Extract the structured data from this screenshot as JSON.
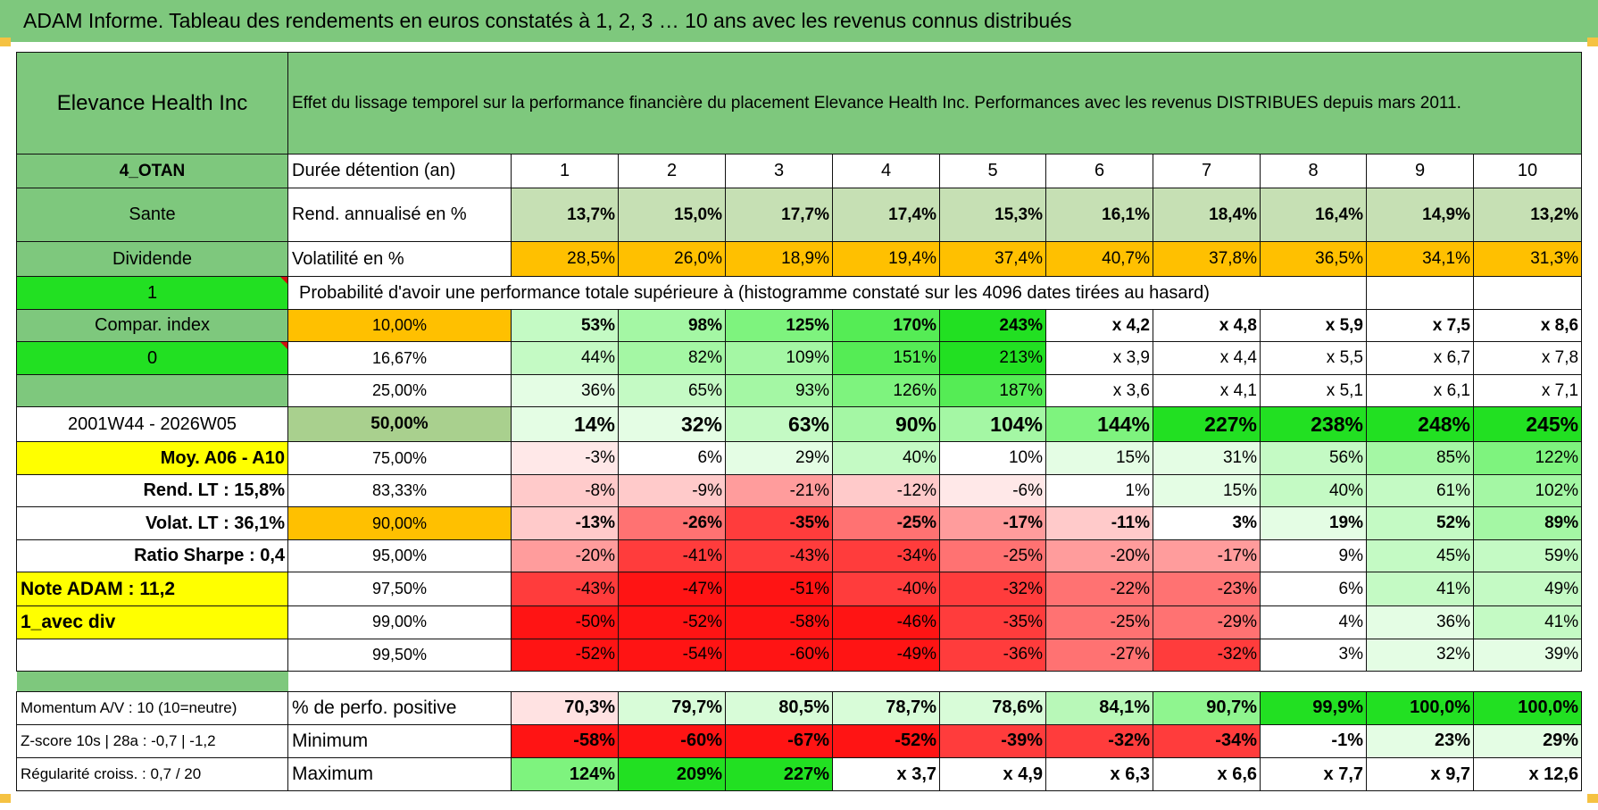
{
  "title": "ADAM Informe. Tableau des rendements en euros constatés à 1, 2, 3 … 10 ans avec les revenus connus distribués",
  "header": {
    "asset": "Elevance Health Inc",
    "description": "Effet du lissage temporel sur la performance financière du placement Elevance Health Inc. Performances avec les revenus DISTRIBUES depuis mars 2011."
  },
  "years": [
    "1",
    "2",
    "3",
    "4",
    "5",
    "6",
    "7",
    "8",
    "9",
    "10"
  ],
  "rows": {
    "duration": {
      "side": "4_OTAN",
      "label": "Durée détention (an)"
    },
    "return": {
      "side": "Sante",
      "label": "Rend. annualisé en %",
      "values": [
        "13,7%",
        "15,0%",
        "17,7%",
        "17,4%",
        "15,3%",
        "16,1%",
        "18,4%",
        "16,4%",
        "14,9%",
        "13,2%"
      ]
    },
    "volatility": {
      "side": "Dividende",
      "label": "Volatilité en %",
      "values": [
        "28,5%",
        "26,0%",
        "18,9%",
        "19,4%",
        "37,4%",
        "40,7%",
        "37,8%",
        "36,5%",
        "34,1%",
        "31,3%"
      ]
    },
    "prob_title": {
      "side": "1",
      "label": "Probabilité d'avoir une performance totale supérieure à (histogramme constaté sur les 4096 dates tirées au hasard)"
    }
  },
  "quantiles": [
    {
      "side": "Compar. index",
      "pct": "10,00%",
      "values": [
        "53%",
        "98%",
        "125%",
        "170%",
        "243%",
        "x 4,2",
        "x 4,8",
        "x 5,9",
        "x 7,5",
        "x 8,6"
      ]
    },
    {
      "side": "0",
      "pct": "16,67%",
      "values": [
        "44%",
        "82%",
        "109%",
        "151%",
        "213%",
        "x 3,9",
        "x 4,4",
        "x 5,5",
        "x 6,7",
        "x 7,8"
      ]
    },
    {
      "side": "",
      "pct": "25,00%",
      "values": [
        "36%",
        "65%",
        "93%",
        "126%",
        "187%",
        "x 3,6",
        "x 4,1",
        "x 5,1",
        "x 6,1",
        "x 7,1"
      ]
    },
    {
      "side": "2001W44 - 2026W05",
      "pct": "50,00%",
      "values": [
        "14%",
        "32%",
        "63%",
        "90%",
        "104%",
        "144%",
        "227%",
        "238%",
        "248%",
        "245%"
      ]
    },
    {
      "side": "Moy. A06 - A10",
      "pct": "75,00%",
      "values": [
        "-3%",
        "6%",
        "29%",
        "40%",
        "10%",
        "15%",
        "31%",
        "56%",
        "85%",
        "122%"
      ]
    },
    {
      "side": "Rend. LT :    15,8%",
      "pct": "83,33%",
      "values": [
        "-8%",
        "-9%",
        "-21%",
        "-12%",
        "-6%",
        "1%",
        "15%",
        "40%",
        "61%",
        "102%"
      ]
    },
    {
      "side": "Volat. LT :    36,1%",
      "pct": "90,00%",
      "values": [
        "-13%",
        "-26%",
        "-35%",
        "-25%",
        "-17%",
        "-11%",
        "3%",
        "19%",
        "52%",
        "89%"
      ]
    },
    {
      "side": "Ratio Sharpe :     0,4",
      "pct": "95,00%",
      "values": [
        "-20%",
        "-41%",
        "-43%",
        "-34%",
        "-25%",
        "-20%",
        "-17%",
        "9%",
        "45%",
        "59%"
      ]
    },
    {
      "side": "Note ADAM : 11,2",
      "pct": "97,50%",
      "values": [
        "-43%",
        "-47%",
        "-51%",
        "-40%",
        "-32%",
        "-22%",
        "-23%",
        "6%",
        "41%",
        "49%"
      ]
    },
    {
      "side": "1_avec div",
      "pct": "99,00%",
      "values": [
        "-50%",
        "-52%",
        "-58%",
        "-46%",
        "-35%",
        "-25%",
        "-29%",
        "4%",
        "36%",
        "41%"
      ]
    },
    {
      "side": "",
      "pct": "99,50%",
      "values": [
        "-52%",
        "-54%",
        "-60%",
        "-49%",
        "-36%",
        "-27%",
        "-32%",
        "3%",
        "32%",
        "39%"
      ]
    }
  ],
  "stats": [
    {
      "side": "Momentum A/V : 10 (10=neutre)",
      "label": "% de perfo. positive",
      "values": [
        "70,3%",
        "79,7%",
        "80,5%",
        "78,7%",
        "78,6%",
        "84,1%",
        "90,7%",
        "99,9%",
        "100,0%",
        "100,0%"
      ]
    },
    {
      "side": "Z-score 10s | 28a : -0,7 | -1,2",
      "label": "Minimum",
      "values": [
        "-58%",
        "-60%",
        "-67%",
        "-52%",
        "-39%",
        "-32%",
        "-34%",
        "-1%",
        "23%",
        "29%"
      ]
    },
    {
      "side": "Régularité croiss. : 0,7 / 20",
      "label": "Maximum",
      "values": [
        "124%",
        "209%",
        "227%",
        "x 3,7",
        "x 4,9",
        "x 6,3",
        "x 6,6",
        "x 7,7",
        "x 9,7",
        "x 12,6"
      ]
    }
  ],
  "colors": {
    "title_bg": "#7ec87d",
    "side_green": "#7ec87d",
    "bright_green": "#22e022",
    "yellow": "#ffff00",
    "orange": "#ffc000",
    "pale_green": "#c6e0b4",
    "red_text": "#d01010"
  }
}
